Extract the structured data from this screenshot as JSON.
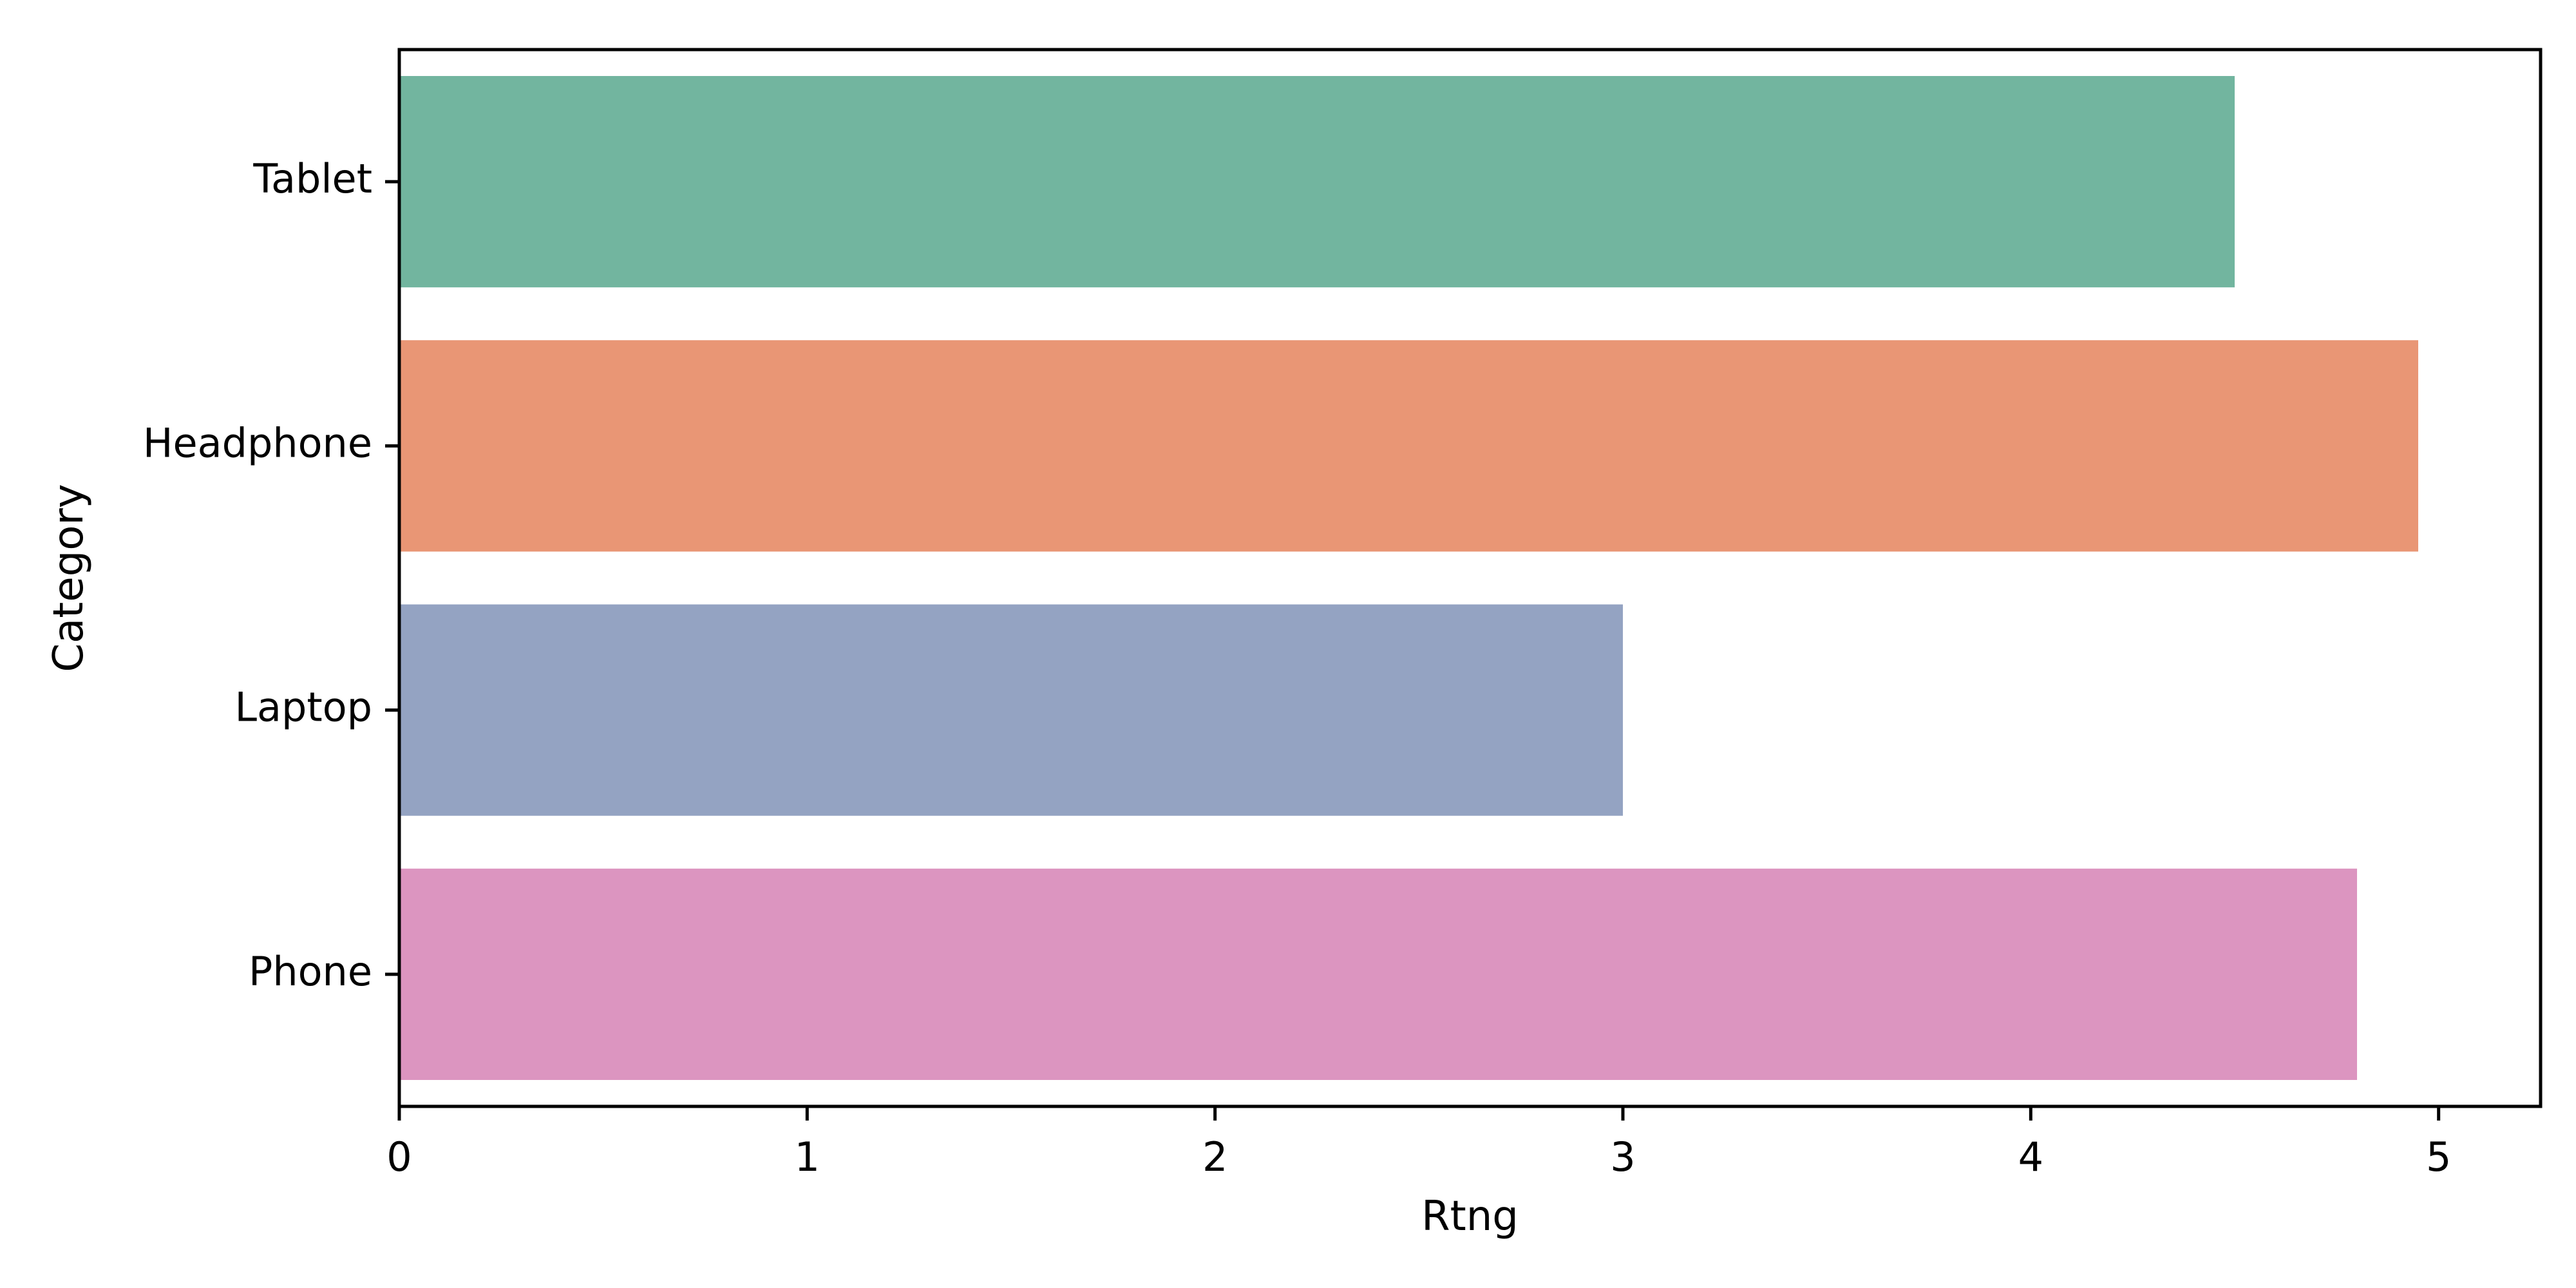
{
  "chart_data": {
    "type": "bar",
    "orientation": "horizontal",
    "title": "",
    "xlabel": "Rtng",
    "ylabel": "Category",
    "categories": [
      "Tablet",
      "Headphone",
      "Laptop",
      "Phone"
    ],
    "values": [
      4.5,
      4.95,
      3.0,
      4.8
    ],
    "colors": [
      "#72b59f",
      "#e99675",
      "#94a3c2",
      "#dc95c0"
    ],
    "xlim": [
      0,
      5.25
    ],
    "xticks": [
      0,
      1,
      2,
      3,
      4,
      5
    ],
    "grid": false,
    "legend": "none"
  }
}
